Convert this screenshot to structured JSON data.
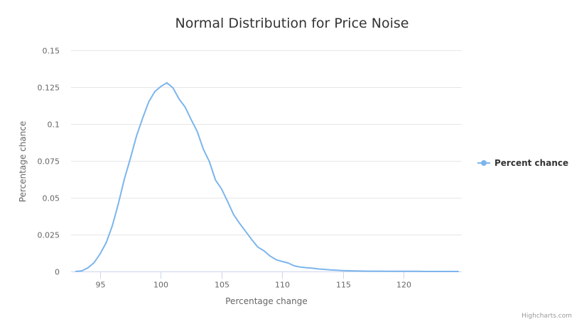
{
  "chart_data": {
    "type": "line",
    "title": "Normal Distribution for Price Noise",
    "xlabel": "Percentage change",
    "ylabel": "Percentage chance",
    "xlim": [
      92.6,
      124.8
    ],
    "ylim": [
      0,
      0.15
    ],
    "x_ticks": [
      95,
      100,
      105,
      110,
      115,
      120
    ],
    "x_tick_labels": [
      "95",
      "100",
      "105",
      "110",
      "115",
      "120"
    ],
    "y_ticks": [
      0,
      0.025,
      0.05,
      0.075,
      0.1,
      0.125,
      0.15
    ],
    "y_tick_labels": [
      "0",
      "0.025",
      "0.05",
      "0.075",
      "0.1",
      "0.125",
      "0.15"
    ],
    "grid": true,
    "legend_position": "right",
    "series": [
      {
        "name": "Percent chance",
        "color": "#7cb5ec",
        "x": [
          93.0,
          93.5,
          94.0,
          94.5,
          95.0,
          95.5,
          96.0,
          96.5,
          97.0,
          97.5,
          98.0,
          98.5,
          99.0,
          99.5,
          100.0,
          100.5,
          101.0,
          101.5,
          102.0,
          102.5,
          103.0,
          103.5,
          104.0,
          104.5,
          105.0,
          105.5,
          106.0,
          106.5,
          107.0,
          107.5,
          108.0,
          108.5,
          109.0,
          109.5,
          110.0,
          110.5,
          111.0,
          111.5,
          112.0,
          112.5,
          113.0,
          113.5,
          114.0,
          114.5,
          115.0,
          115.5,
          116.0,
          116.5,
          117.0,
          118.0,
          119.0,
          120.0,
          121.0,
          122.0,
          123.0,
          124.5
        ],
        "y": [
          0.0,
          0.0005,
          0.0025,
          0.006,
          0.012,
          0.0195,
          0.031,
          0.046,
          0.063,
          0.077,
          0.092,
          0.104,
          0.115,
          0.122,
          0.1255,
          0.128,
          0.1245,
          0.117,
          0.1115,
          0.103,
          0.095,
          0.083,
          0.0745,
          0.062,
          0.056,
          0.0475,
          0.0385,
          0.0325,
          0.027,
          0.0215,
          0.0165,
          0.014,
          0.0105,
          0.008,
          0.0068,
          0.0057,
          0.0038,
          0.003,
          0.0025,
          0.0022,
          0.0017,
          0.0014,
          0.001,
          0.0008,
          0.0006,
          0.0005,
          0.0004,
          0.0003,
          0.0002,
          0.0002,
          0.0001,
          0.0001,
          0.0001,
          0.0,
          0.0,
          0.0
        ]
      }
    ]
  },
  "credits": "Highcharts.com"
}
